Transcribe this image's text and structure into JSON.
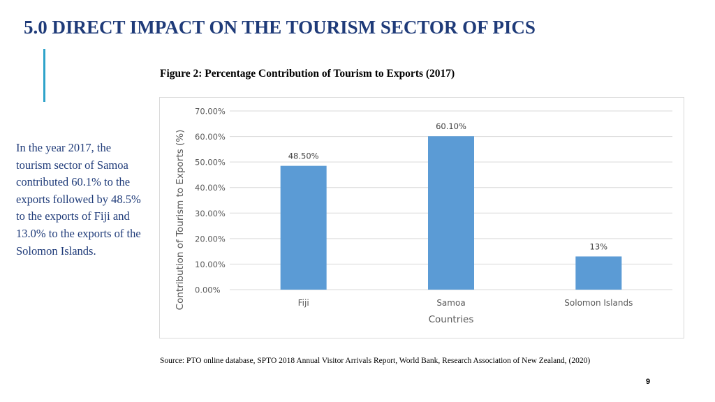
{
  "slide": {
    "title": "5.0 DIRECT IMPACT ON THE TOURISM SECTOR OF PICS",
    "figure_caption": "Figure 2: Percentage Contribution of Tourism to Exports (2017)",
    "side_text": "In the year 2017, the tourism sector of Samoa contributed 60.1% to the exports followed by 48.5% to the exports of Fiji and 13.0% to the exports of the Solomon Islands.",
    "source": "Source: PTO online database, SPTO 2018 Annual Visitor Arrivals Report, World Bank, Research Association of New Zealand, (2020)",
    "page_number": "9"
  },
  "colors": {
    "title": "#1f3b79",
    "accent": "#2ea3c9",
    "bar": "#5b9bd5",
    "gridline": "#d9d9d9",
    "axis_text": "#595959"
  },
  "chart_data": {
    "type": "bar",
    "title": "",
    "categories": [
      "Fiji",
      "Samoa",
      "Solomon Islands"
    ],
    "values": [
      48.5,
      60.1,
      13
    ],
    "data_labels": [
      "48.50%",
      "60.10%",
      "13%"
    ],
    "xlabel": "Countries",
    "ylabel": "Contribution of Tourism to Exports (%)",
    "ylim": [
      0,
      70
    ],
    "yticks": [
      0,
      10,
      20,
      30,
      40,
      50,
      60,
      70
    ],
    "ytick_labels": [
      "0.00%",
      "10.00%",
      "20.00%",
      "30.00%",
      "40.00%",
      "50.00%",
      "60.00%",
      "70.00%"
    ],
    "grid": true,
    "legend": "none"
  }
}
